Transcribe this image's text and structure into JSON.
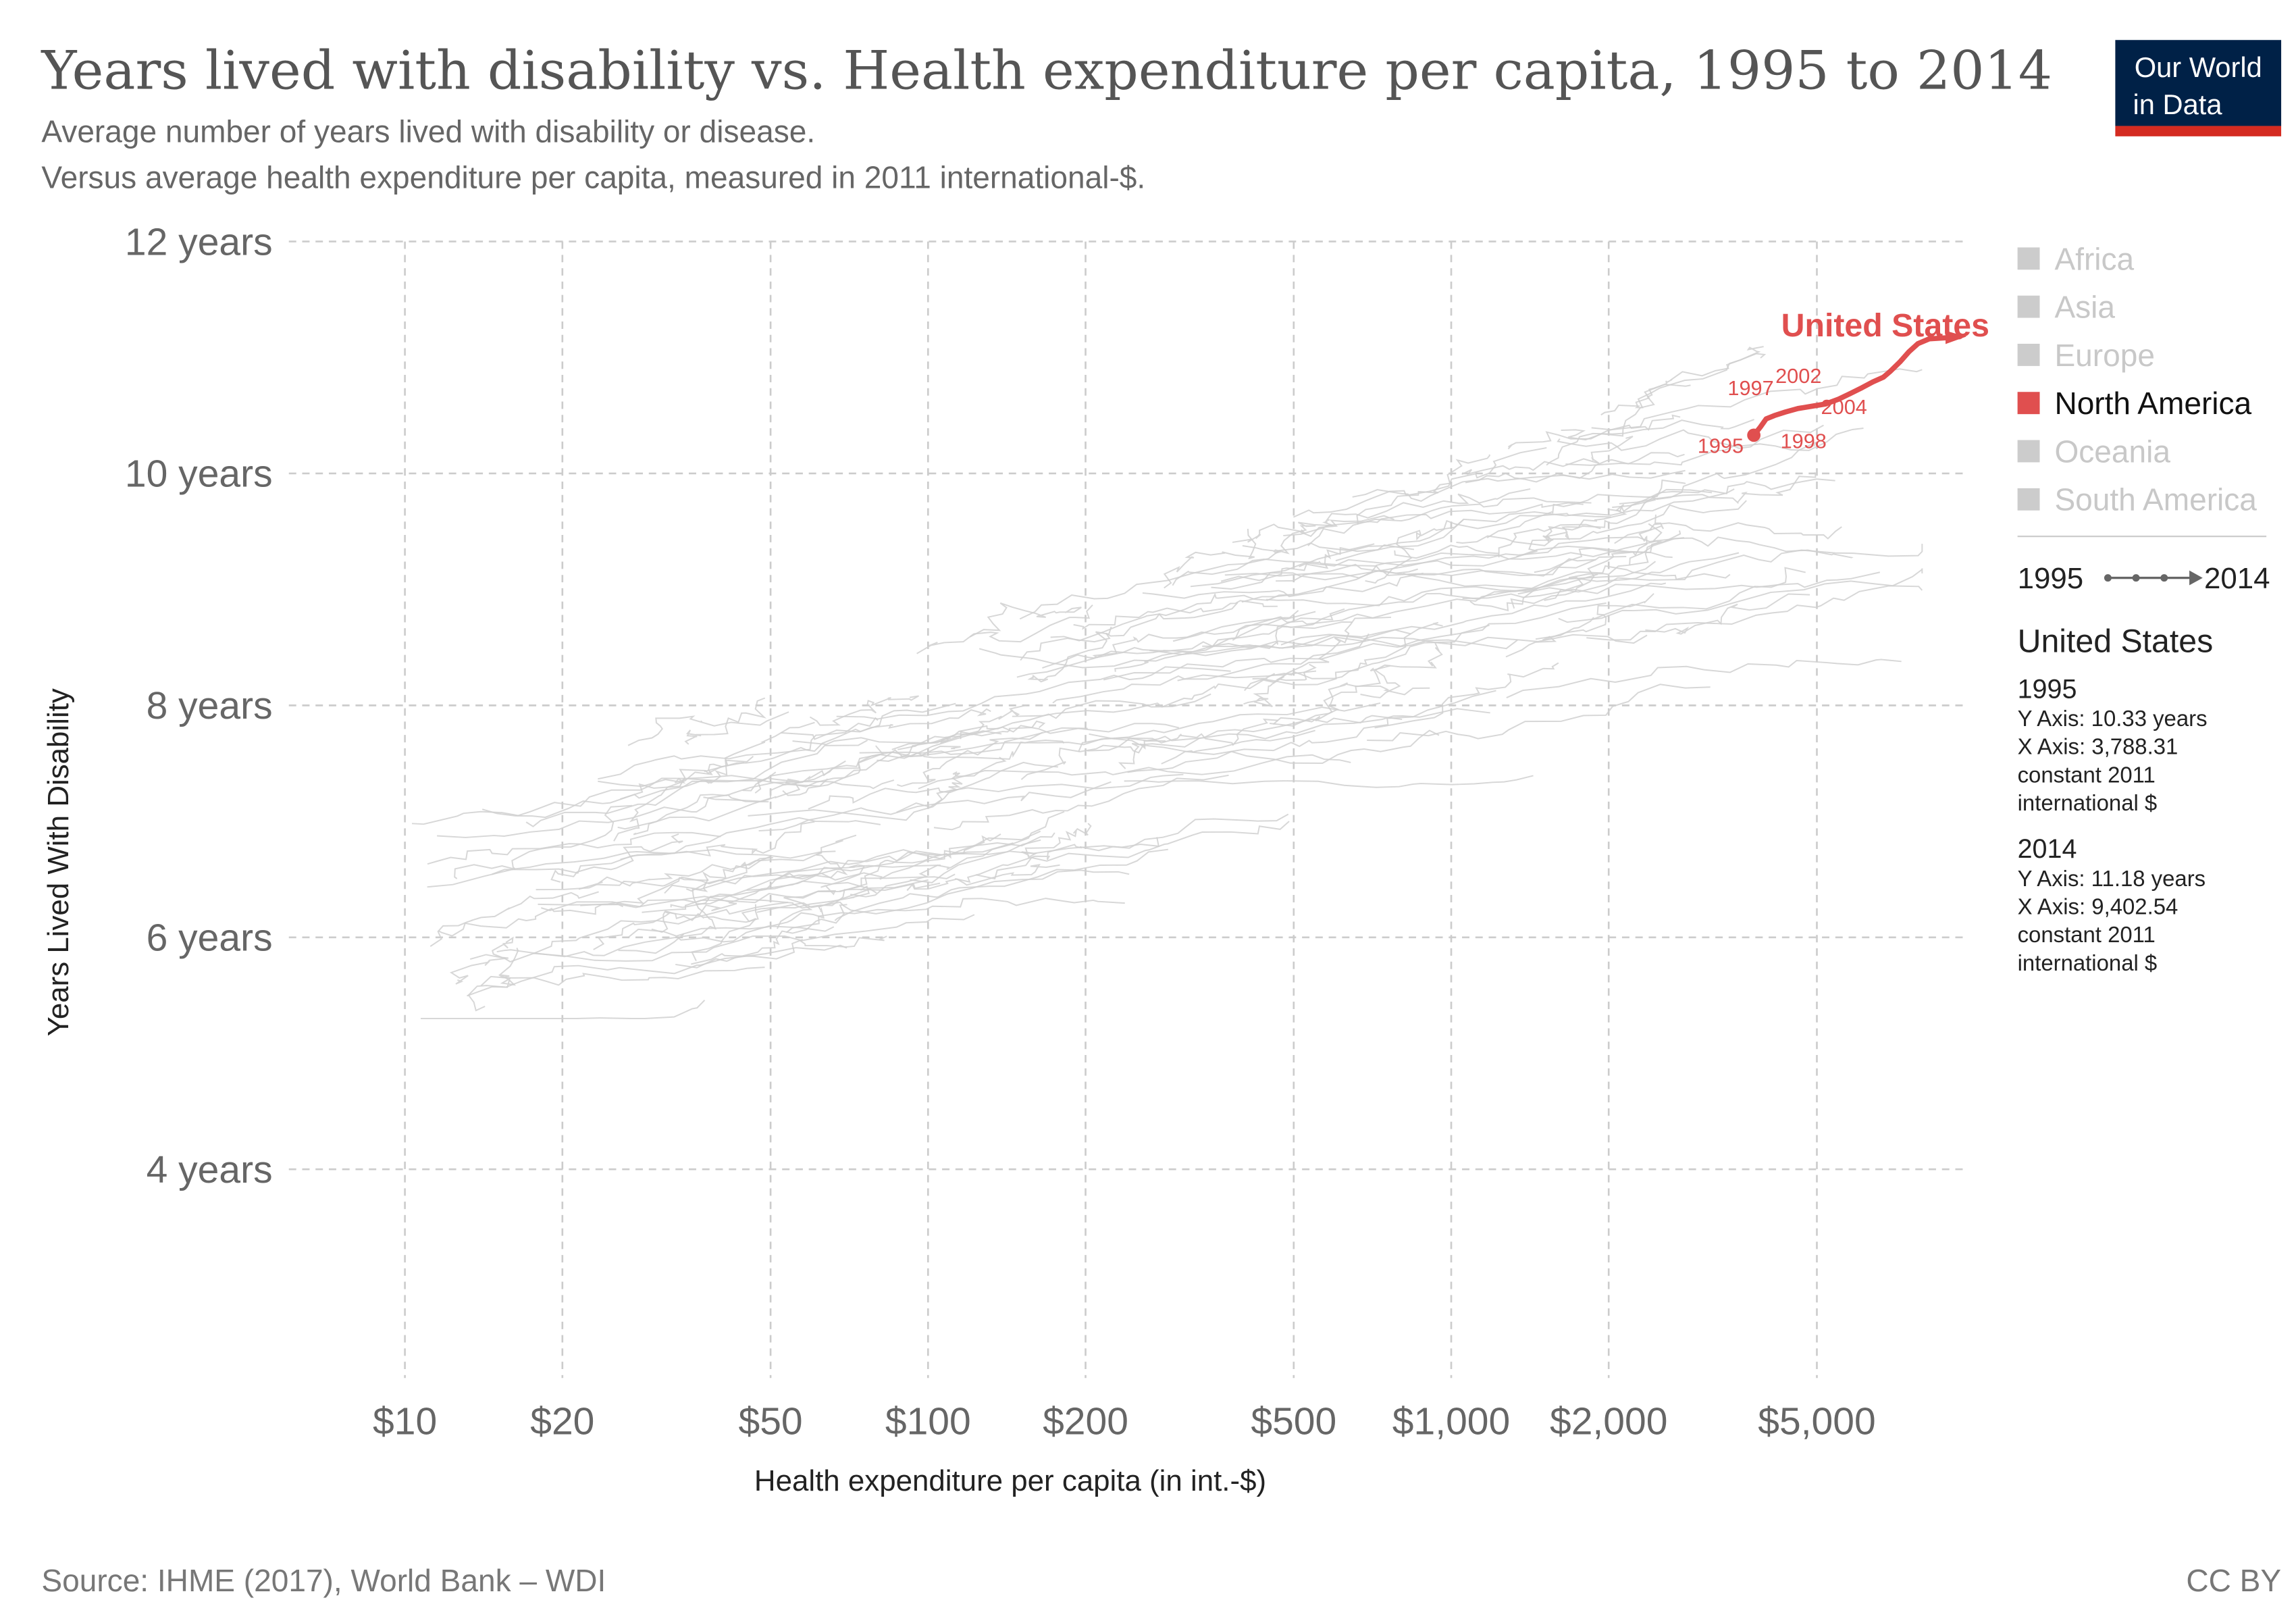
{
  "header": {
    "title": "Years lived with disability vs. Health expenditure per capita, 1995 to 2014",
    "subtitle_line1": "Average number of years lived with disability or disease.",
    "subtitle_line2": "Versus average health expenditure per capita, measured in 2011 international-$.",
    "logo_line1": "Our World",
    "logo_line2": "in Data"
  },
  "colors": {
    "highlight": "#e04f4f",
    "background_lines": "#cccccc",
    "logo_bg": "#002147",
    "logo_bar": "#d42b21",
    "legend_inactive": "#c8c8c8"
  },
  "legend": {
    "items": [
      {
        "label": "Africa",
        "active": false
      },
      {
        "label": "Asia",
        "active": false
      },
      {
        "label": "Europe",
        "active": false
      },
      {
        "label": "North America",
        "active": true
      },
      {
        "label": "Oceania",
        "active": false
      },
      {
        "label": "South America",
        "active": false
      }
    ],
    "timeline_start": "1995",
    "timeline_end": "2014"
  },
  "info_panel": {
    "entity": "United States",
    "blocks": [
      {
        "year": "1995",
        "y_line": "Y Axis: 10.33 years",
        "x_line": "X Axis: 3,788.31",
        "unit1": "constant 2011",
        "unit2": "international $"
      },
      {
        "year": "2014",
        "y_line": "Y Axis: 11.18 years",
        "x_line": "X Axis: 9,402.54",
        "unit1": "constant 2011",
        "unit2": "international $"
      }
    ]
  },
  "footer": {
    "source": "Source: IHME (2017), World Bank – WDI",
    "license": "CC BY"
  },
  "chart_data": {
    "type": "scatter",
    "connected": true,
    "title": "Years lived with disability vs. Health expenditure per capita, 1995 to 2014",
    "xlabel": "Health expenditure per capita (in int.-$)",
    "ylabel": "Years Lived With Disability",
    "x_scale": "log",
    "xlim": [
      6,
      9500
    ],
    "ylim": [
      2.2,
      12
    ],
    "grid": true,
    "legend_position": "right",
    "x_ticks": [
      {
        "value": 10,
        "label": "$10"
      },
      {
        "value": 20,
        "label": "$20"
      },
      {
        "value": 50,
        "label": "$50"
      },
      {
        "value": 100,
        "label": "$100"
      },
      {
        "value": 200,
        "label": "$200"
      },
      {
        "value": 500,
        "label": "$500"
      },
      {
        "value": 1000,
        "label": "$1,000"
      },
      {
        "value": 2000,
        "label": "$2,000"
      },
      {
        "value": 5000,
        "label": "$5,000"
      }
    ],
    "y_ticks": [
      {
        "value": 4,
        "label": "4 years"
      },
      {
        "value": 6,
        "label": "6 years"
      },
      {
        "value": 8,
        "label": "8 years"
      },
      {
        "value": 10,
        "label": "10 years"
      },
      {
        "value": 12,
        "label": "12 years"
      }
    ],
    "highlighted_series": {
      "name": "United States",
      "labeled_years": [
        "1995",
        "1997",
        "1998",
        "2002",
        "2004"
      ],
      "points": [
        {
          "year": 1995,
          "x": 3788.31,
          "y": 10.33
        },
        {
          "year": 1996,
          "x": 3900,
          "y": 10.4
        },
        {
          "year": 1997,
          "x": 4000,
          "y": 10.47
        },
        {
          "year": 1998,
          "x": 4150,
          "y": 10.5
        },
        {
          "year": 1999,
          "x": 4350,
          "y": 10.53
        },
        {
          "year": 2000,
          "x": 4600,
          "y": 10.56
        },
        {
          "year": 2001,
          "x": 4900,
          "y": 10.58
        },
        {
          "year": 2002,
          "x": 5200,
          "y": 10.6
        },
        {
          "year": 2003,
          "x": 5500,
          "y": 10.64
        },
        {
          "year": 2004,
          "x": 5800,
          "y": 10.69
        },
        {
          "year": 2005,
          "x": 6100,
          "y": 10.74
        },
        {
          "year": 2006,
          "x": 6400,
          "y": 10.79
        },
        {
          "year": 2007,
          "x": 6700,
          "y": 10.83
        },
        {
          "year": 2008,
          "x": 6900,
          "y": 10.88
        },
        {
          "year": 2009,
          "x": 7200,
          "y": 10.96
        },
        {
          "year": 2010,
          "x": 7500,
          "y": 11.05
        },
        {
          "year": 2011,
          "x": 7800,
          "y": 11.12
        },
        {
          "year": 2012,
          "x": 8200,
          "y": 11.16
        },
        {
          "year": 2013,
          "x": 8800,
          "y": 11.17
        },
        {
          "year": 2014,
          "x": 9402.54,
          "y": 11.18
        }
      ]
    }
  }
}
